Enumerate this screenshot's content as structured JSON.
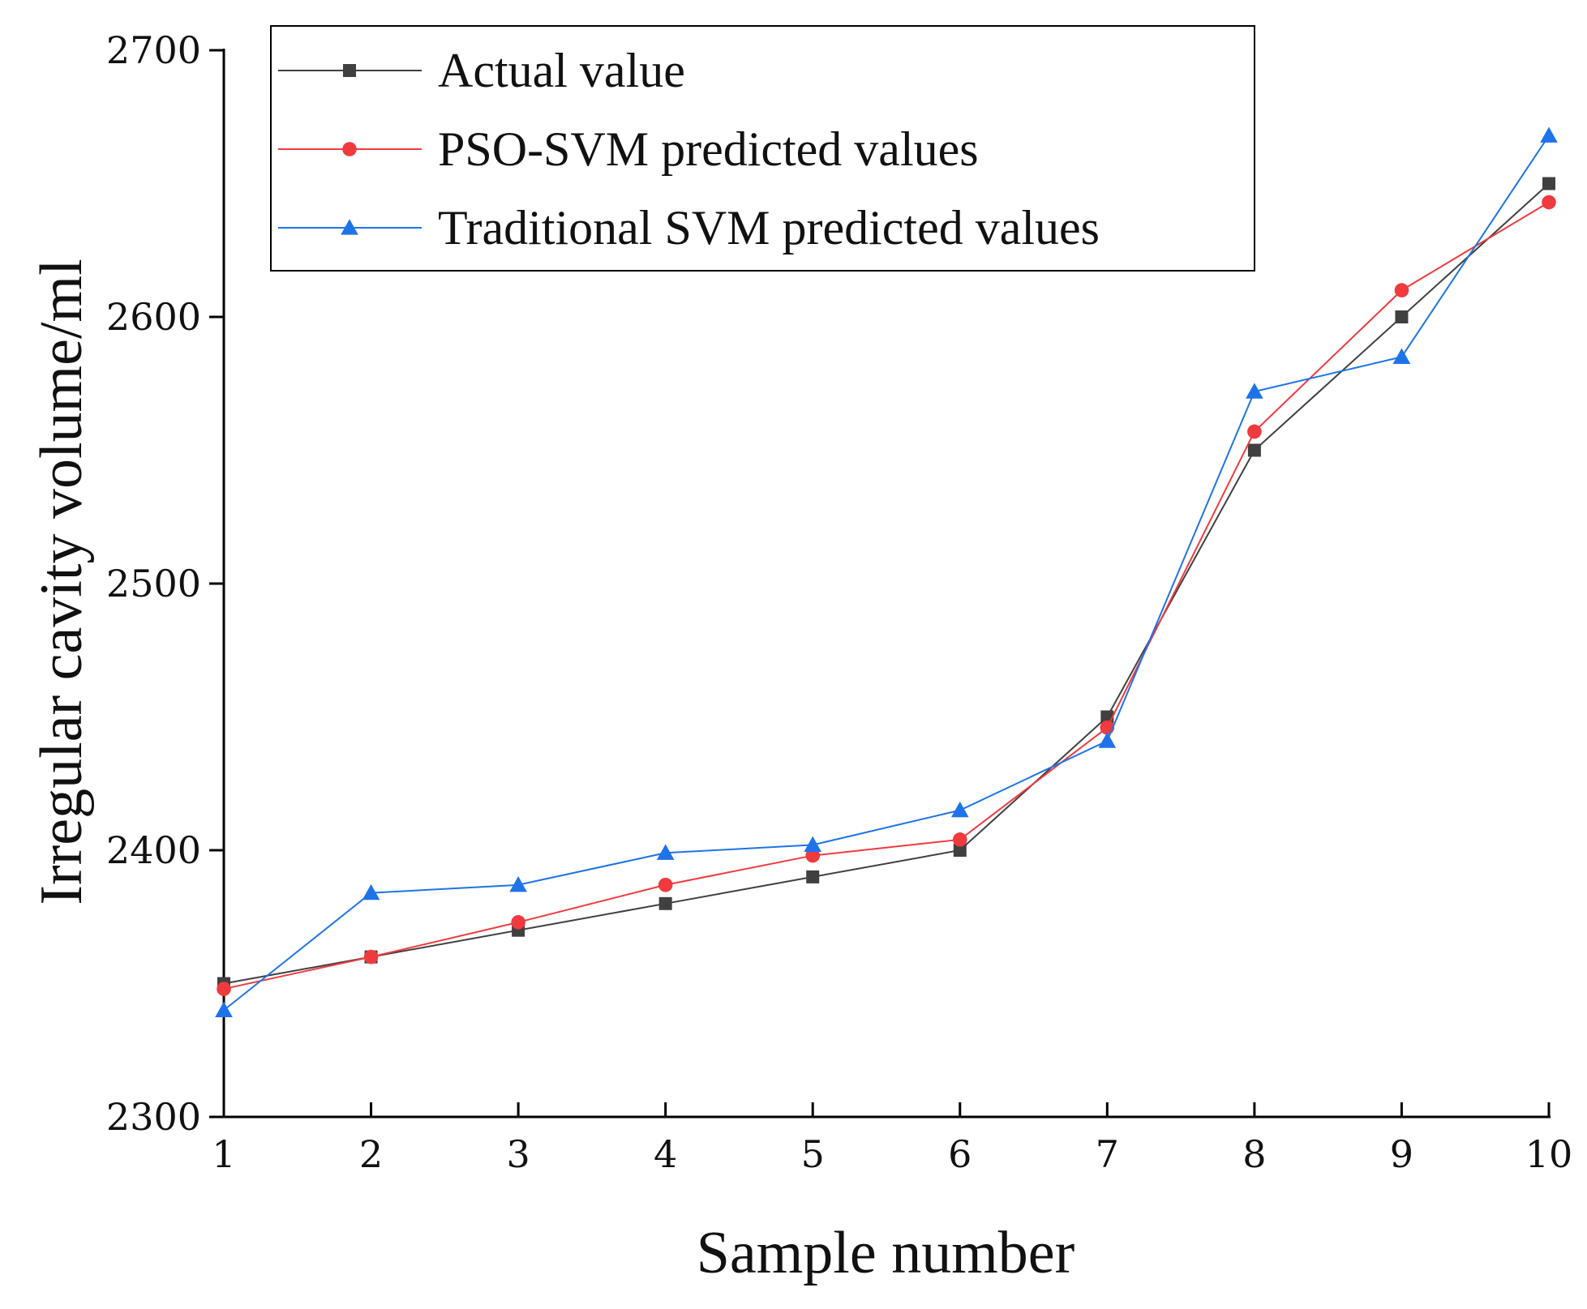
{
  "chart_data": {
    "type": "line",
    "title": "",
    "xlabel": "Sample number",
    "ylabel": "Irregular cavity volume/ml",
    "x": [
      1,
      2,
      3,
      4,
      5,
      6,
      7,
      8,
      9,
      10
    ],
    "xticks": [
      "1",
      "2",
      "3",
      "4",
      "5",
      "6",
      "7",
      "8",
      "9",
      "10"
    ],
    "yticks": [
      "2300",
      "2400",
      "2500",
      "2600",
      "2700"
    ],
    "xlim": [
      1,
      10
    ],
    "ylim": [
      2300,
      2700
    ],
    "grid": false,
    "legend_position": "top-left",
    "series": [
      {
        "name": "Actual value",
        "color": "#404040",
        "marker": "square",
        "values": [
          2350,
          2360,
          2370,
          2380,
          2390,
          2400,
          2450,
          2550,
          2600,
          2650
        ]
      },
      {
        "name": "PSO-SVM predicted values",
        "color": "#f03a3e",
        "marker": "circle",
        "values": [
          2348,
          2360,
          2373,
          2387,
          2398,
          2404,
          2446,
          2557,
          2610,
          2643
        ]
      },
      {
        "name": "Traditional SVM predicted values",
        "color": "#1e73e8",
        "marker": "triangle",
        "values": [
          2340,
          2384,
          2387,
          2399,
          2402,
          2415,
          2441,
          2572,
          2585,
          2668
        ]
      }
    ]
  }
}
